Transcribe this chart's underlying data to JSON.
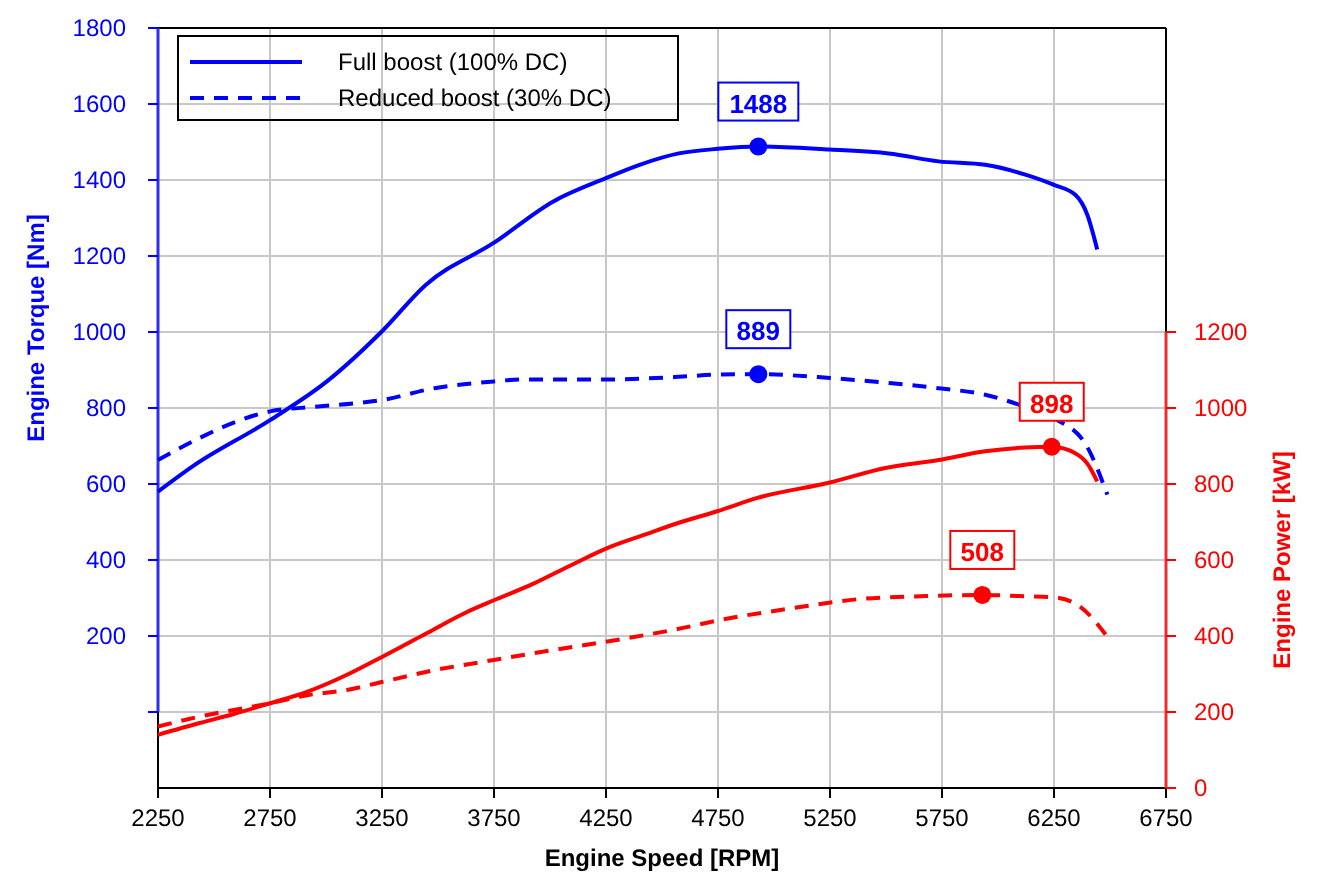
{
  "chart_data": {
    "type": "line",
    "xlabel": "Engine Speed [RPM]",
    "ylabel": "Engine Torque [Nm]",
    "y2label": "Engine Power [kW]",
    "xlim": [
      2250,
      6750
    ],
    "xticks": [
      2250,
      2750,
      3250,
      3750,
      4250,
      4750,
      5250,
      5750,
      6250,
      6750
    ],
    "ylim": [
      -200,
      1800
    ],
    "yticks": [
      {
        "value": 0,
        "label": null
      },
      200,
      400,
      600,
      800,
      1000,
      1200,
      1400,
      1600,
      1800
    ],
    "y2lim": [
      0,
      2000
    ],
    "y2ticks": [
      0,
      200,
      400,
      600,
      800,
      1000,
      1200
    ],
    "grid": true,
    "legend": "top left",
    "marker": "none",
    "series": [
      {
        "name": "Full boost (100% DC)",
        "color": "#0000ff",
        "line_style": "solid",
        "x": [
          2250,
          2406,
          2750,
          3004,
          3250,
          3445,
          3750,
          4013,
          4250,
          4400,
          4575,
          4750,
          4930,
          5250,
          5512,
          5735,
          5943,
          6122,
          6250,
          6345,
          6399,
          6443
        ],
        "values": [
          580,
          647,
          768,
          870,
          1002,
          1124,
          1235,
          1343,
          1405,
          1440,
          1470,
          1482,
          1488,
          1480,
          1470,
          1449,
          1440,
          1414,
          1387,
          1361,
          1308,
          1217
        ]
      },
      {
        "name": "Reduced boost (30% DC)",
        "color": "#0000ff",
        "line_style": "dashed",
        "x": [
          2250,
          2436,
          2585,
          2750,
          2945,
          3124,
          3250,
          3484,
          3750,
          3870,
          4250,
          4575,
          4750,
          4930,
          5250,
          5527,
          5735,
          5943,
          6092,
          6250,
          6393,
          6488
        ],
        "values": [
          663,
          721,
          761,
          791,
          803,
          812,
          821,
          852,
          870,
          875,
          875,
          882,
          888,
          889,
          879,
          865,
          852,
          835,
          809,
          773,
          703,
          572
        ]
      },
      {
        "color": "#ff0000",
        "line_style": "solid",
        "axis": "y2",
        "x": [
          2250,
          2436,
          2585,
          2750,
          2915,
          3094,
          3250,
          3445,
          3625,
          3750,
          3924,
          4103,
          4250,
          4430,
          4575,
          4750,
          4930,
          5250,
          5497,
          5735,
          5943,
          6122,
          6240,
          6345,
          6402,
          6443
        ],
        "values": [
          140,
          171,
          194,
          223,
          253,
          298,
          345,
          406,
          462,
          494,
          537,
          589,
          630,
          668,
          698,
          729,
          764,
          804,
          842,
          863,
          886,
          896,
          898,
          881,
          851,
          807
        ]
      },
      {
        "color": "#ff0000",
        "line_style": "dashed",
        "axis": "y2",
        "x": [
          2250,
          2436,
          2750,
          2915,
          3094,
          3250,
          3484,
          3750,
          4013,
          4250,
          4575,
          4750,
          5080,
          5378,
          5676,
          5930,
          6092,
          6250,
          6369,
          6488
        ],
        "values": [
          162,
          188,
          223,
          244,
          258,
          279,
          310,
          337,
          363,
          385,
          419,
          441,
          473,
          497,
          505,
          508,
          505,
          502,
          476,
          398
        ]
      },
      {
        "type": "scatter",
        "marker": "circle",
        "color": "#0000ff",
        "x": [
          4930
        ],
        "values": [
          1488
        ],
        "value_labels": [
          "1488"
        ]
      },
      {
        "type": "scatter",
        "marker": "circle",
        "color": "#0000ff",
        "x": [
          4930
        ],
        "values": [
          889
        ],
        "value_labels": [
          "889"
        ]
      },
      {
        "type": "scatter",
        "marker": "circle",
        "color": "#ff0000",
        "axis": "y2",
        "x": [
          6240
        ],
        "values": [
          898
        ],
        "value_labels": [
          "898"
        ]
      },
      {
        "type": "scatter",
        "marker": "circle",
        "color": "#ff0000",
        "axis": "y2",
        "x": [
          5930
        ],
        "values": [
          508
        ],
        "value_labels": [
          "508"
        ]
      }
    ]
  }
}
